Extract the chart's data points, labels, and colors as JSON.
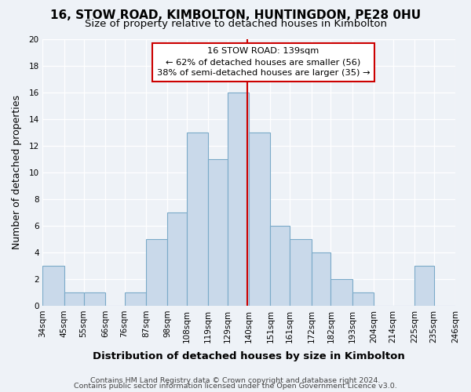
{
  "title": "16, STOW ROAD, KIMBOLTON, HUNTINGDON, PE28 0HU",
  "subtitle": "Size of property relative to detached houses in Kimbolton",
  "xlabel": "Distribution of detached houses by size in Kimbolton",
  "ylabel": "Number of detached properties",
  "bin_labels": [
    "34sqm",
    "45sqm",
    "55sqm",
    "66sqm",
    "76sqm",
    "87sqm",
    "98sqm",
    "108sqm",
    "119sqm",
    "129sqm",
    "140sqm",
    "151sqm",
    "161sqm",
    "172sqm",
    "182sqm",
    "193sqm",
    "204sqm",
    "214sqm",
    "225sqm",
    "235sqm",
    "246sqm"
  ],
  "bin_edges": [
    34,
    45,
    55,
    66,
    76,
    87,
    98,
    108,
    119,
    129,
    140,
    151,
    161,
    172,
    182,
    193,
    204,
    214,
    225,
    235,
    246
  ],
  "counts": [
    3,
    1,
    1,
    0,
    1,
    5,
    7,
    13,
    11,
    16,
    13,
    6,
    5,
    4,
    2,
    1,
    0,
    0,
    3,
    0
  ],
  "bar_facecolor": "#c9d9ea",
  "bar_edgecolor": "#7aaac8",
  "vline_x": 139,
  "vline_color": "#cc0000",
  "annotation_line1": "16 STOW ROAD: 139sqm",
  "annotation_line2": "← 62% of detached houses are smaller (56)",
  "annotation_line3": "38% of semi-detached houses are larger (35) →",
  "annotation_box_edgecolor": "#cc0000",
  "annotation_box_facecolor": "#ffffff",
  "ylim": [
    0,
    20
  ],
  "yticks": [
    0,
    2,
    4,
    6,
    8,
    10,
    12,
    14,
    16,
    18,
    20
  ],
  "footer_line1": "Contains HM Land Registry data © Crown copyright and database right 2024.",
  "footer_line2": "Contains public sector information licensed under the Open Government Licence v3.0.",
  "bg_color": "#eef2f7",
  "grid_color": "#ffffff",
  "title_fontsize": 11,
  "subtitle_fontsize": 9.5,
  "axis_label_fontsize": 9,
  "tick_fontsize": 7.5,
  "footer_fontsize": 6.8
}
